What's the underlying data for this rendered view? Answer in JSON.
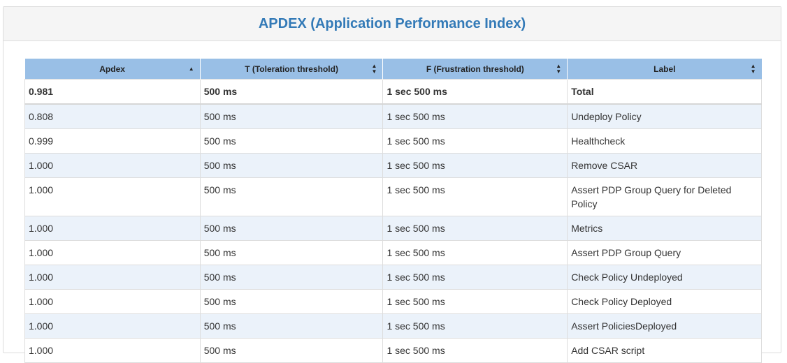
{
  "panel": {
    "title": "APDEX (Application Performance Index)"
  },
  "table": {
    "columns": [
      {
        "label": "Apdex",
        "sort_icon": "sort-asc-icon"
      },
      {
        "label": "T (Toleration threshold)",
        "sort_icon": "sort-both-icon"
      },
      {
        "label": "F (Frustration threshold)",
        "sort_icon": "sort-both-icon"
      },
      {
        "label": "Label",
        "sort_icon": "sort-both-icon"
      }
    ],
    "total": {
      "apdex": "0.981",
      "t": "500 ms",
      "f": "1 sec 500 ms",
      "label": "Total"
    },
    "rows": [
      {
        "apdex": "0.808",
        "t": "500 ms",
        "f": "1 sec 500 ms",
        "label": "Undeploy Policy"
      },
      {
        "apdex": "0.999",
        "t": "500 ms",
        "f": "1 sec 500 ms",
        "label": "Healthcheck"
      },
      {
        "apdex": "1.000",
        "t": "500 ms",
        "f": "1 sec 500 ms",
        "label": "Remove CSAR"
      },
      {
        "apdex": "1.000",
        "t": "500 ms",
        "f": "1 sec 500 ms",
        "label": "Assert PDP Group Query for Deleted Policy"
      },
      {
        "apdex": "1.000",
        "t": "500 ms",
        "f": "1 sec 500 ms",
        "label": "Metrics"
      },
      {
        "apdex": "1.000",
        "t": "500 ms",
        "f": "1 sec 500 ms",
        "label": "Assert PDP Group Query"
      },
      {
        "apdex": "1.000",
        "t": "500 ms",
        "f": "1 sec 500 ms",
        "label": "Check Policy Undeployed"
      },
      {
        "apdex": "1.000",
        "t": "500 ms",
        "f": "1 sec 500 ms",
        "label": "Check Policy Deployed"
      },
      {
        "apdex": "1.000",
        "t": "500 ms",
        "f": "1 sec 500 ms",
        "label": "Assert PoliciesDeployed"
      },
      {
        "apdex": "1.000",
        "t": "500 ms",
        "f": "1 sec 500 ms",
        "label": "Add CSAR script"
      }
    ]
  },
  "colors": {
    "title": "#337ab7",
    "header_bg": "#99bfe6",
    "odd_row_bg": "#ebf2fa",
    "even_row_bg": "#ffffff",
    "panel_heading_bg": "#f5f5f5"
  }
}
